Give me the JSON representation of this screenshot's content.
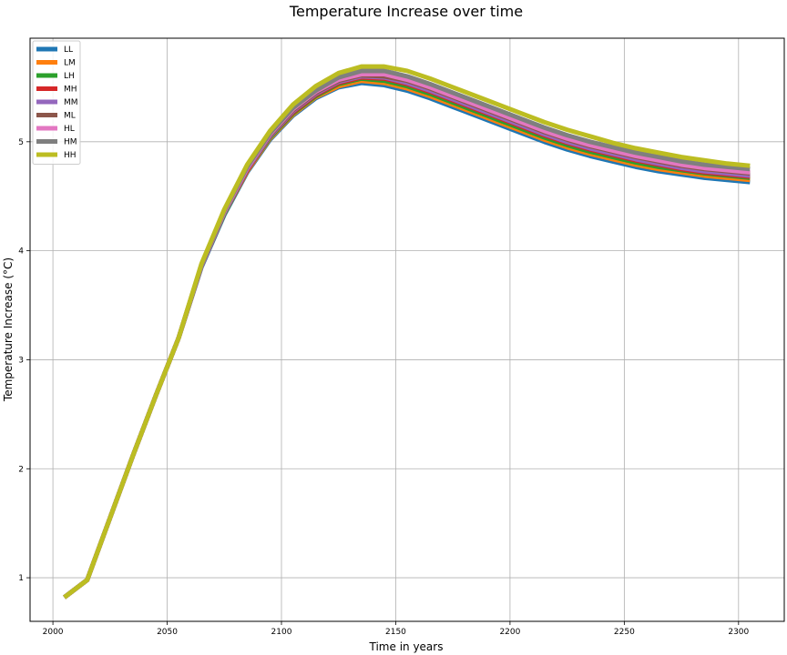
{
  "chart_data": {
    "type": "line",
    "title": "Temperature Increase over time",
    "xlabel": "Time in years",
    "ylabel": "Temperature Increase (°C)",
    "xlim": [
      1990,
      2320
    ],
    "ylim": [
      0.6,
      5.95
    ],
    "xticks": [
      2000,
      2050,
      2100,
      2150,
      2200,
      2250,
      2300
    ],
    "yticks": [
      1,
      2,
      3,
      4,
      5
    ],
    "grid": true,
    "legend_position": "top-left",
    "x": [
      2005,
      2015,
      2025,
      2035,
      2045,
      2055,
      2065,
      2075,
      2085,
      2095,
      2105,
      2115,
      2125,
      2135,
      2145,
      2155,
      2165,
      2175,
      2185,
      2195,
      2205,
      2215,
      2225,
      2235,
      2245,
      2255,
      2265,
      2275,
      2285,
      2295,
      2305
    ],
    "series": [
      {
        "name": "LL",
        "color": "#1f77b4",
        "values": [
          0.82,
          0.98,
          1.55,
          2.12,
          2.67,
          3.2,
          3.85,
          4.33,
          4.72,
          5.02,
          5.24,
          5.4,
          5.5,
          5.54,
          5.52,
          5.47,
          5.4,
          5.32,
          5.24,
          5.16,
          5.08,
          5.0,
          4.93,
          4.87,
          4.82,
          4.77,
          4.73,
          4.7,
          4.67,
          4.65,
          4.63
        ]
      },
      {
        "name": "LM",
        "color": "#ff7f0e",
        "values": [
          0.82,
          0.98,
          1.55,
          2.12,
          2.67,
          3.2,
          3.86,
          4.34,
          4.73,
          5.03,
          5.25,
          5.41,
          5.51,
          5.56,
          5.54,
          5.49,
          5.42,
          5.34,
          5.26,
          5.18,
          5.1,
          5.02,
          4.95,
          4.89,
          4.84,
          4.79,
          4.75,
          4.72,
          4.69,
          4.67,
          4.65
        ]
      },
      {
        "name": "LH",
        "color": "#2ca02c",
        "values": [
          0.82,
          0.98,
          1.55,
          2.12,
          2.67,
          3.2,
          3.86,
          4.34,
          4.74,
          5.04,
          5.26,
          5.42,
          5.53,
          5.58,
          5.56,
          5.51,
          5.44,
          5.36,
          5.28,
          5.2,
          5.12,
          5.04,
          4.97,
          4.91,
          4.86,
          4.81,
          4.77,
          4.74,
          4.71,
          4.69,
          4.67
        ]
      },
      {
        "name": "MH",
        "color": "#d62728",
        "values": [
          0.82,
          0.98,
          1.55,
          2.12,
          2.67,
          3.2,
          3.86,
          4.35,
          4.74,
          5.05,
          5.27,
          5.43,
          5.54,
          5.59,
          5.58,
          5.53,
          5.46,
          5.38,
          5.3,
          5.22,
          5.14,
          5.06,
          4.99,
          4.93,
          4.88,
          4.83,
          4.79,
          4.75,
          4.72,
          4.7,
          4.68
        ]
      },
      {
        "name": "MM",
        "color": "#9467bd",
        "values": [
          0.82,
          0.98,
          1.55,
          2.12,
          2.67,
          3.2,
          3.86,
          4.35,
          4.75,
          5.05,
          5.28,
          5.44,
          5.55,
          5.6,
          5.59,
          5.54,
          5.47,
          5.39,
          5.31,
          5.23,
          5.15,
          5.07,
          5.0,
          4.94,
          4.89,
          4.84,
          4.8,
          4.76,
          4.73,
          4.71,
          4.69
        ]
      },
      {
        "name": "ML",
        "color": "#8c564b",
        "values": [
          0.82,
          0.98,
          1.55,
          2.12,
          2.67,
          3.2,
          3.87,
          4.36,
          4.76,
          5.06,
          5.29,
          5.45,
          5.56,
          5.61,
          5.6,
          5.56,
          5.49,
          5.41,
          5.33,
          5.25,
          5.17,
          5.09,
          5.02,
          4.96,
          4.91,
          4.86,
          4.82,
          4.78,
          4.75,
          4.73,
          4.71
        ]
      },
      {
        "name": "HL",
        "color": "#e377c2",
        "values": [
          0.82,
          0.98,
          1.55,
          2.12,
          2.67,
          3.2,
          3.87,
          4.36,
          4.76,
          5.07,
          5.3,
          5.46,
          5.57,
          5.62,
          5.62,
          5.57,
          5.5,
          5.42,
          5.34,
          5.26,
          5.18,
          5.1,
          5.03,
          4.97,
          4.92,
          4.87,
          4.83,
          4.79,
          4.76,
          4.74,
          4.72
        ]
      },
      {
        "name": "HM",
        "color": "#7f7f7f",
        "values": [
          0.82,
          0.98,
          1.55,
          2.12,
          2.67,
          3.2,
          3.87,
          4.37,
          4.77,
          5.08,
          5.31,
          5.47,
          5.59,
          5.65,
          5.65,
          5.6,
          5.53,
          5.45,
          5.37,
          5.29,
          5.21,
          5.13,
          5.06,
          5.0,
          4.95,
          4.9,
          4.86,
          4.82,
          4.79,
          4.77,
          4.75
        ]
      },
      {
        "name": "HH",
        "color": "#bcbd22",
        "values": [
          0.82,
          0.98,
          1.55,
          2.12,
          2.67,
          3.2,
          3.88,
          4.38,
          4.79,
          5.1,
          5.34,
          5.51,
          5.63,
          5.69,
          5.69,
          5.65,
          5.58,
          5.5,
          5.42,
          5.34,
          5.26,
          5.18,
          5.11,
          5.05,
          4.99,
          4.94,
          4.9,
          4.86,
          4.83,
          4.8,
          4.78
        ]
      }
    ]
  }
}
